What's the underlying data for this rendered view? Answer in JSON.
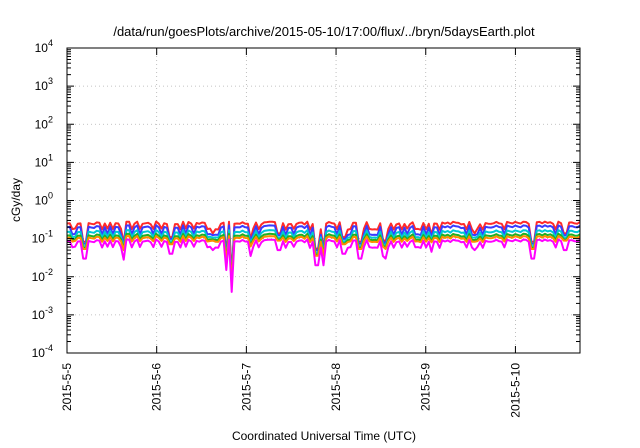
{
  "chart_data": {
    "type": "line",
    "title": "/data/run/goesPlots/archive/2015-05-10/17:00/flux/../bryn/5daysEarth.plot",
    "xlabel": "Coordinated Universal Time (UTC)",
    "ylabel": "cGy/day",
    "yscale": "log",
    "ylim": [
      0.0001,
      10000
    ],
    "xlim_days": [
      0,
      5.72
    ],
    "grid": true,
    "legend": "none",
    "xticks": [
      {
        "label": "2015-5-5",
        "day": 0
      },
      {
        "label": "2015-5-6",
        "day": 1
      },
      {
        "label": "2015-5-7",
        "day": 2
      },
      {
        "label": "2015-5-8",
        "day": 3
      },
      {
        "label": "2015-5-9",
        "day": 4
      },
      {
        "label": "2015-5-10",
        "day": 5
      }
    ],
    "yticks": [
      {
        "base": "10",
        "exp": "-4",
        "value": 0.0001
      },
      {
        "base": "10",
        "exp": "-3",
        "value": 0.001
      },
      {
        "base": "10",
        "exp": "-2",
        "value": 0.01
      },
      {
        "base": "10",
        "exp": "-1",
        "value": 0.1
      },
      {
        "base": "10",
        "exp": "0",
        "value": 1
      },
      {
        "base": "10",
        "exp": "1",
        "value": 10
      },
      {
        "base": "10",
        "exp": "2",
        "value": 100
      },
      {
        "base": "10",
        "exp": "3",
        "value": 1000
      },
      {
        "base": "10",
        "exp": "4",
        "value": 10000
      }
    ],
    "series": [
      {
        "color": "#ff2a2a",
        "typical": 0.25,
        "low": 0.18
      },
      {
        "color": "#3a3aff",
        "typical": 0.2,
        "low": 0.13
      },
      {
        "color": "#00c8d4",
        "typical": 0.15,
        "low": 0.11
      },
      {
        "color": "#22b022",
        "typical": 0.12,
        "low": 0.095
      },
      {
        "color": "#ff8c00",
        "typical": 0.105,
        "low": 0.085
      },
      {
        "color": "#ff00ff",
        "typical": 0.085,
        "low": 0.06
      }
    ],
    "dips": [
      {
        "day": 0.19,
        "value": 0.03
      },
      {
        "day": 0.63,
        "value": 0.028
      },
      {
        "day": 1.16,
        "value": 0.04
      },
      {
        "day": 1.62,
        "value": 0.05
      },
      {
        "day": 1.77,
        "value": 0.015
      },
      {
        "day": 1.83,
        "value": 0.004
      },
      {
        "day": 2.04,
        "value": 0.035
      },
      {
        "day": 2.37,
        "value": 0.05
      },
      {
        "day": 2.78,
        "value": 0.02
      },
      {
        "day": 2.86,
        "value": 0.02
      },
      {
        "day": 3.08,
        "value": 0.04
      },
      {
        "day": 3.26,
        "value": 0.03
      },
      {
        "day": 3.52,
        "value": 0.035
      },
      {
        "day": 3.56,
        "value": 0.03
      },
      {
        "day": 4.06,
        "value": 0.045
      },
      {
        "day": 4.55,
        "value": 0.05
      },
      {
        "day": 5.19,
        "value": 0.03
      },
      {
        "day": 5.55,
        "value": 0.05
      }
    ]
  }
}
